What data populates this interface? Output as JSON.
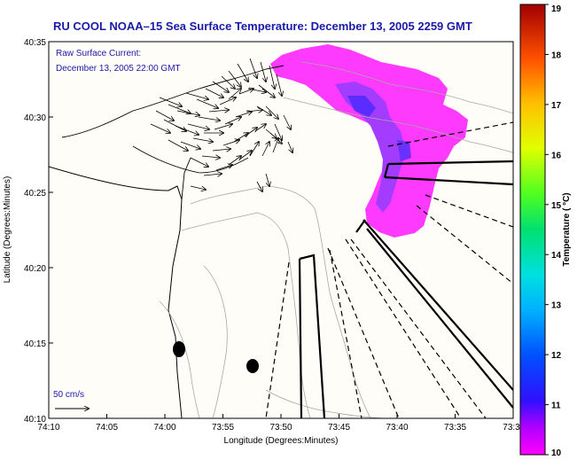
{
  "title": "RU COOL   NOAA–15  Sea Surface Temperature:  December 13, 2005 2259 GMT",
  "overlay": {
    "line1": "Raw Surface Current:",
    "line2": "December 13, 2005 22:00 GMT"
  },
  "axes": {
    "xlabel": "Longitude (Degrees:Minutes)",
    "ylabel": "Latitude (Degrees:Minutes)",
    "x_ticks": [
      "74:10",
      "74:05",
      "74:00",
      "73:55",
      "73:50",
      "73:45",
      "73:40",
      "73:35",
      "73:3"
    ],
    "y_ticks": [
      "40:35",
      "40:30",
      "40:25",
      "40:20",
      "40:15",
      "40:10"
    ]
  },
  "scale_label": "50 cm/s",
  "colorbar": {
    "label": "Temperature ( °C)",
    "ticks": [
      "19",
      "18",
      "17",
      "16",
      "15",
      "14",
      "13",
      "12",
      "11",
      "10"
    ],
    "min": 10,
    "max": 19
  },
  "colors": {
    "title": "#1a1aa8",
    "sst_warm": "#ff33ff",
    "sst_cool": "#5a2cff",
    "land_outline": "#000000",
    "bathymetry": "#a0a0a0"
  }
}
